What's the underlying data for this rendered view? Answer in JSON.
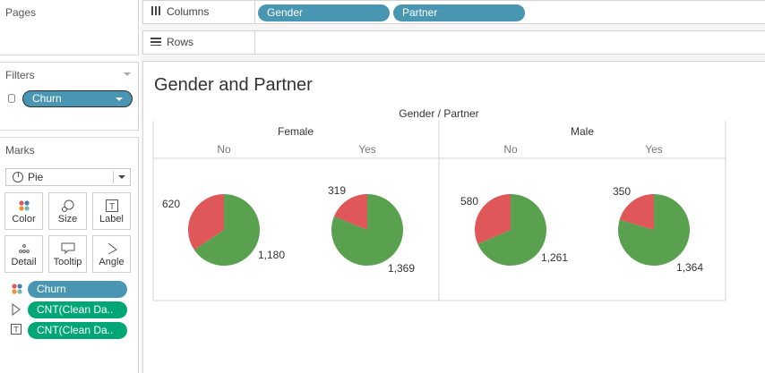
{
  "pages": {
    "title": "Pages"
  },
  "filters": {
    "title": "Filters",
    "items": [
      {
        "label": "Churn"
      }
    ]
  },
  "marks": {
    "title": "Marks",
    "type": "Pie",
    "buttons": [
      "Color",
      "Size",
      "Label",
      "Detail",
      "Tooltip",
      "Angle"
    ],
    "fields": [
      "Churn",
      "CNT(Clean Da..",
      "CNT(Clean Da.."
    ]
  },
  "shelves": {
    "columns": {
      "label": "Columns",
      "pills": [
        "Gender",
        "Partner"
      ]
    },
    "rows": {
      "label": "Rows"
    }
  },
  "colors": {
    "churn_yes": "#e05759",
    "churn_no": "#59a14f",
    "pill_blue": "#4996b2",
    "pill_green": "#00a676"
  },
  "view": {
    "title": "Gender and Partner",
    "header": "Gender / Partner",
    "genders": [
      "Female",
      "Male"
    ],
    "partner_labels": [
      "No",
      "Yes",
      "No",
      "Yes"
    ]
  },
  "chart_data": {
    "type": "pie",
    "title": "Gender and Partner",
    "columns_header": "Gender / Partner",
    "color_field": "Churn",
    "pies": [
      {
        "gender": "Female",
        "partner": "No",
        "slices": [
          {
            "value": 620
          },
          {
            "value": 1180
          }
        ],
        "labels": [
          "620",
          "1,180"
        ]
      },
      {
        "gender": "Female",
        "partner": "Yes",
        "slices": [
          {
            "value": 319
          },
          {
            "value": 1369
          }
        ],
        "labels": [
          "319",
          "1,369"
        ]
      },
      {
        "gender": "Male",
        "partner": "No",
        "slices": [
          {
            "value": 580
          },
          {
            "value": 1261
          }
        ],
        "labels": [
          "580",
          "1,261"
        ]
      },
      {
        "gender": "Male",
        "partner": "Yes",
        "slices": [
          {
            "value": 350
          },
          {
            "value": 1364
          }
        ],
        "labels": [
          "350",
          "1,364"
        ]
      }
    ]
  }
}
